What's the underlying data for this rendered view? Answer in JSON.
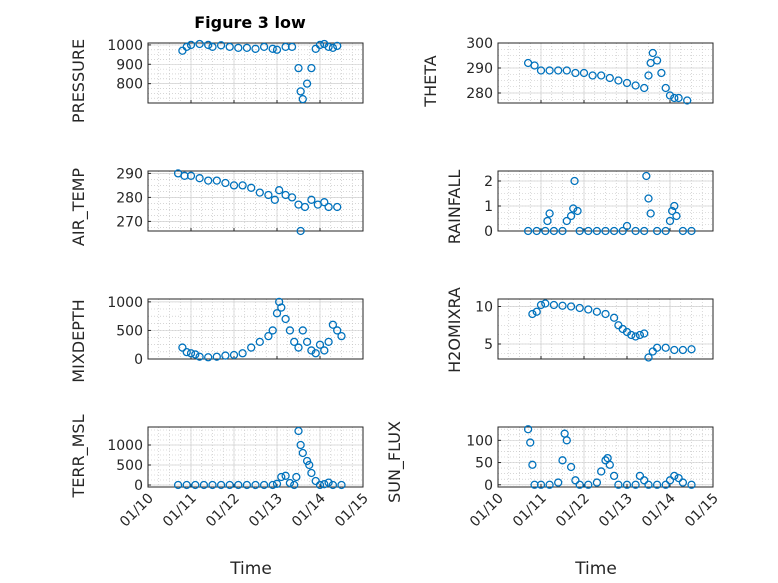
{
  "title": "Figure 3 low",
  "colors": {
    "marker": "#0072BD",
    "axes": "#262626",
    "grid": "#bdbdbd"
  },
  "chart_data": [
    {
      "type": "scatter",
      "ylabel": "PRESSURE",
      "xlim": [
        0,
        5
      ],
      "ylim": [
        700,
        1010
      ],
      "yticks": [
        800,
        900,
        1000
      ],
      "yticklabels": [
        "800",
        "900",
        "1000"
      ],
      "grid": true,
      "points": [
        [
          0.8,
          970
        ],
        [
          0.9,
          990
        ],
        [
          1.0,
          1000
        ],
        [
          1.2,
          1005
        ],
        [
          1.4,
          1000
        ],
        [
          1.5,
          990
        ],
        [
          1.7,
          998
        ],
        [
          1.9,
          990
        ],
        [
          2.1,
          985
        ],
        [
          2.3,
          985
        ],
        [
          2.5,
          980
        ],
        [
          2.7,
          990
        ],
        [
          2.9,
          980
        ],
        [
          3.0,
          975
        ],
        [
          3.2,
          990
        ],
        [
          3.35,
          990
        ],
        [
          3.5,
          880
        ],
        [
          3.55,
          760
        ],
        [
          3.6,
          720
        ],
        [
          3.7,
          800
        ],
        [
          3.8,
          880
        ],
        [
          3.9,
          980
        ],
        [
          4.0,
          1000
        ],
        [
          4.1,
          1005
        ],
        [
          4.2,
          990
        ],
        [
          4.3,
          985
        ],
        [
          4.4,
          995
        ]
      ]
    },
    {
      "type": "scatter",
      "ylabel": "THETA",
      "xlim": [
        0,
        5
      ],
      "ylim": [
        276,
        300
      ],
      "yticks": [
        280,
        290,
        300
      ],
      "yticklabels": [
        "280",
        "290",
        "300"
      ],
      "grid": true,
      "points": [
        [
          0.7,
          292
        ],
        [
          0.85,
          291
        ],
        [
          1.0,
          289
        ],
        [
          1.2,
          289
        ],
        [
          1.4,
          289
        ],
        [
          1.6,
          289
        ],
        [
          1.8,
          288
        ],
        [
          2.0,
          288
        ],
        [
          2.2,
          287
        ],
        [
          2.4,
          287
        ],
        [
          2.6,
          286
        ],
        [
          2.8,
          285
        ],
        [
          3.0,
          284
        ],
        [
          3.2,
          283
        ],
        [
          3.4,
          282
        ],
        [
          3.5,
          287
        ],
        [
          3.55,
          292
        ],
        [
          3.6,
          296
        ],
        [
          3.7,
          293
        ],
        [
          3.8,
          288
        ],
        [
          3.9,
          282
        ],
        [
          4.0,
          279
        ],
        [
          4.1,
          278
        ],
        [
          4.2,
          278
        ],
        [
          4.4,
          277
        ]
      ]
    },
    {
      "type": "scatter",
      "ylabel": "AIR_TEMP",
      "xlim": [
        0,
        5
      ],
      "ylim": [
        266,
        291
      ],
      "yticks": [
        270,
        280,
        290
      ],
      "yticklabels": [
        "270",
        "280",
        "290"
      ],
      "grid": true,
      "points": [
        [
          0.7,
          290
        ],
        [
          0.85,
          289
        ],
        [
          1.0,
          289
        ],
        [
          1.2,
          288
        ],
        [
          1.4,
          287
        ],
        [
          1.6,
          287
        ],
        [
          1.8,
          286
        ],
        [
          2.0,
          285
        ],
        [
          2.2,
          285
        ],
        [
          2.4,
          284
        ],
        [
          2.6,
          282
        ],
        [
          2.8,
          281
        ],
        [
          2.95,
          279
        ],
        [
          3.05,
          283
        ],
        [
          3.2,
          281
        ],
        [
          3.35,
          280
        ],
        [
          3.5,
          277
        ],
        [
          3.55,
          266
        ],
        [
          3.65,
          276
        ],
        [
          3.8,
          279
        ],
        [
          3.95,
          277
        ],
        [
          4.1,
          278
        ],
        [
          4.2,
          276
        ],
        [
          4.4,
          276
        ]
      ]
    },
    {
      "type": "scatter",
      "ylabel": "RAINFALL",
      "xlim": [
        0,
        5
      ],
      "ylim": [
        0,
        2.4
      ],
      "yticks": [
        0,
        1,
        2
      ],
      "yticklabels": [
        "0",
        "1",
        "2"
      ],
      "grid": true,
      "points": [
        [
          0.7,
          0
        ],
        [
          0.9,
          0
        ],
        [
          1.1,
          0
        ],
        [
          1.15,
          0.4
        ],
        [
          1.2,
          0.7
        ],
        [
          1.3,
          0
        ],
        [
          1.5,
          0
        ],
        [
          1.6,
          0.4
        ],
        [
          1.7,
          0.6
        ],
        [
          1.75,
          0.9
        ],
        [
          1.78,
          2.0
        ],
        [
          1.85,
          0.8
        ],
        [
          1.9,
          0
        ],
        [
          2.1,
          0
        ],
        [
          2.3,
          0
        ],
        [
          2.5,
          0
        ],
        [
          2.7,
          0
        ],
        [
          2.9,
          0
        ],
        [
          3.0,
          0.2
        ],
        [
          3.2,
          0
        ],
        [
          3.4,
          0
        ],
        [
          3.45,
          2.2
        ],
        [
          3.5,
          1.3
        ],
        [
          3.55,
          0.7
        ],
        [
          3.7,
          0
        ],
        [
          3.9,
          0
        ],
        [
          4.0,
          0.4
        ],
        [
          4.05,
          0.8
        ],
        [
          4.1,
          1.0
        ],
        [
          4.15,
          0.6
        ],
        [
          4.3,
          0
        ],
        [
          4.5,
          0
        ]
      ]
    },
    {
      "type": "scatter",
      "ylabel": "MIXDEPTH",
      "xlim": [
        0,
        5
      ],
      "ylim": [
        0,
        1050
      ],
      "yticks": [
        0,
        500,
        1000
      ],
      "yticklabels": [
        "0",
        "500",
        "1000"
      ],
      "grid": true,
      "points": [
        [
          0.8,
          200
        ],
        [
          0.9,
          120
        ],
        [
          1.0,
          100
        ],
        [
          1.1,
          80
        ],
        [
          1.2,
          40
        ],
        [
          1.4,
          30
        ],
        [
          1.6,
          40
        ],
        [
          1.8,
          60
        ],
        [
          2.0,
          70
        ],
        [
          2.2,
          100
        ],
        [
          2.4,
          200
        ],
        [
          2.6,
          300
        ],
        [
          2.8,
          400
        ],
        [
          2.9,
          500
        ],
        [
          3.0,
          800
        ],
        [
          3.05,
          1000
        ],
        [
          3.1,
          900
        ],
        [
          3.2,
          700
        ],
        [
          3.3,
          500
        ],
        [
          3.4,
          300
        ],
        [
          3.5,
          200
        ],
        [
          3.6,
          500
        ],
        [
          3.7,
          300
        ],
        [
          3.8,
          150
        ],
        [
          3.9,
          100
        ],
        [
          4.0,
          250
        ],
        [
          4.1,
          150
        ],
        [
          4.2,
          300
        ],
        [
          4.3,
          600
        ],
        [
          4.4,
          500
        ],
        [
          4.5,
          400
        ]
      ]
    },
    {
      "type": "scatter",
      "ylabel": "H2OMIXRA",
      "xlim": [
        0,
        5
      ],
      "ylim": [
        3,
        11
      ],
      "yticks": [
        5,
        10
      ],
      "yticklabels": [
        "5",
        "10"
      ],
      "grid": true,
      "points": [
        [
          0.8,
          9
        ],
        [
          0.9,
          9.3
        ],
        [
          1.0,
          10.2
        ],
        [
          1.1,
          10.4
        ],
        [
          1.3,
          10.2
        ],
        [
          1.5,
          10.1
        ],
        [
          1.7,
          10
        ],
        [
          1.9,
          9.8
        ],
        [
          2.1,
          9.6
        ],
        [
          2.3,
          9.3
        ],
        [
          2.5,
          9
        ],
        [
          2.7,
          8.5
        ],
        [
          2.8,
          7.5
        ],
        [
          2.9,
          7
        ],
        [
          3.0,
          6.6
        ],
        [
          3.1,
          6.2
        ],
        [
          3.2,
          6
        ],
        [
          3.3,
          6.2
        ],
        [
          3.4,
          6.4
        ],
        [
          3.5,
          3.2
        ],
        [
          3.6,
          4
        ],
        [
          3.7,
          4.5
        ],
        [
          3.9,
          4.5
        ],
        [
          4.1,
          4.2
        ],
        [
          4.3,
          4.2
        ],
        [
          4.5,
          4.3
        ]
      ]
    },
    {
      "type": "scatter",
      "ylabel": "TERR_MSL",
      "xlim": [
        0,
        5
      ],
      "ylim": [
        -50,
        1450
      ],
      "yticks": [
        0,
        500,
        1000
      ],
      "yticklabels": [
        "0",
        "500",
        "1000"
      ],
      "grid": true,
      "points": [
        [
          0.7,
          0
        ],
        [
          0.9,
          0
        ],
        [
          1.1,
          0
        ],
        [
          1.3,
          0
        ],
        [
          1.5,
          0
        ],
        [
          1.7,
          0
        ],
        [
          1.9,
          0
        ],
        [
          2.1,
          0
        ],
        [
          2.3,
          0
        ],
        [
          2.5,
          0
        ],
        [
          2.7,
          0
        ],
        [
          2.9,
          0
        ],
        [
          3.0,
          30
        ],
        [
          3.1,
          200
        ],
        [
          3.2,
          230
        ],
        [
          3.3,
          50
        ],
        [
          3.4,
          0
        ],
        [
          3.45,
          200
        ],
        [
          3.5,
          1350
        ],
        [
          3.55,
          1000
        ],
        [
          3.6,
          800
        ],
        [
          3.7,
          600
        ],
        [
          3.75,
          500
        ],
        [
          3.8,
          300
        ],
        [
          3.9,
          100
        ],
        [
          4.0,
          0
        ],
        [
          4.1,
          20
        ],
        [
          4.2,
          60
        ],
        [
          4.3,
          0
        ],
        [
          4.5,
          0
        ]
      ]
    },
    {
      "type": "scatter",
      "ylabel": "SUN_FLUX",
      "xlim": [
        0,
        5
      ],
      "ylim": [
        -5,
        130
      ],
      "yticks": [
        0,
        50,
        100
      ],
      "yticklabels": [
        "0",
        "50",
        "100"
      ],
      "grid": true,
      "points": [
        [
          0.7,
          125
        ],
        [
          0.75,
          95
        ],
        [
          0.8,
          45
        ],
        [
          0.85,
          0
        ],
        [
          1.0,
          0
        ],
        [
          1.2,
          0
        ],
        [
          1.4,
          5
        ],
        [
          1.5,
          55
        ],
        [
          1.55,
          115
        ],
        [
          1.6,
          100
        ],
        [
          1.7,
          40
        ],
        [
          1.8,
          10
        ],
        [
          1.9,
          0
        ],
        [
          2.1,
          0
        ],
        [
          2.3,
          5
        ],
        [
          2.4,
          30
        ],
        [
          2.5,
          55
        ],
        [
          2.55,
          60
        ],
        [
          2.6,
          45
        ],
        [
          2.7,
          20
        ],
        [
          2.8,
          0
        ],
        [
          3.0,
          0
        ],
        [
          3.2,
          0
        ],
        [
          3.3,
          20
        ],
        [
          3.4,
          10
        ],
        [
          3.5,
          0
        ],
        [
          3.7,
          0
        ],
        [
          3.9,
          0
        ],
        [
          4.0,
          10
        ],
        [
          4.1,
          20
        ],
        [
          4.2,
          15
        ],
        [
          4.3,
          5
        ],
        [
          4.5,
          0
        ]
      ]
    }
  ],
  "xaxis": {
    "xlabel": "Time",
    "ticks": [
      0,
      1,
      2,
      3,
      4,
      5
    ],
    "ticklabels": [
      "01/10",
      "01/11",
      "01/12",
      "01/13",
      "01/14",
      "01/15"
    ]
  }
}
